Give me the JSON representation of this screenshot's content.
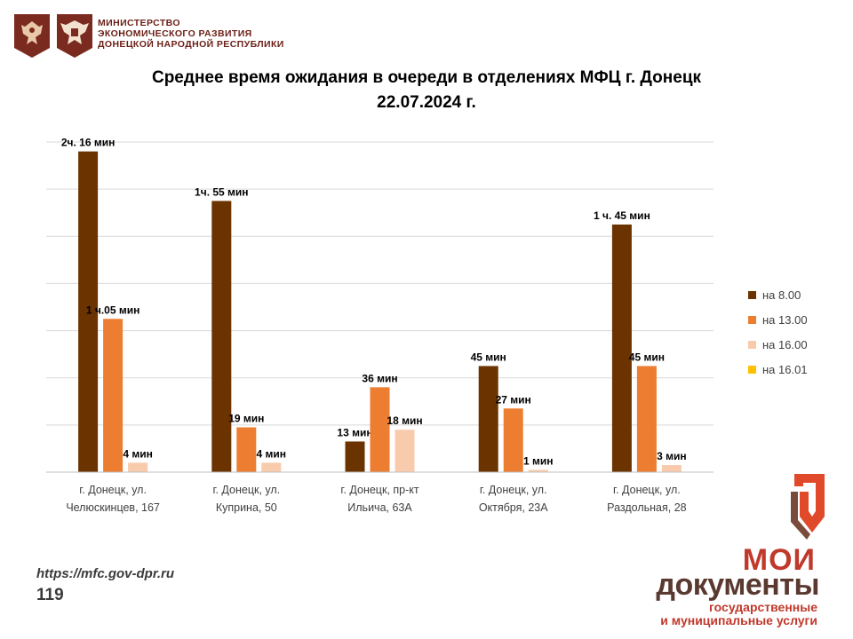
{
  "header": {
    "ministry_lines": [
      "МИНИСТЕРСТВО",
      "ЭКОНОМИЧЕСКОГО РАЗВИТИЯ",
      "ДОНЕЦКОЙ НАРОДНОЙ РЕСПУБЛИКИ"
    ],
    "emblems": [
      "coat-of-arms-icon",
      "eagle-emblem-icon"
    ]
  },
  "colors": {
    "series_0": "#6b3300",
    "series_1": "#ed7d31",
    "series_2": "#f8cbad",
    "series_3": "#ffc000",
    "brand_red": "#c0392b",
    "brand_brown": "#5a3a30",
    "grid": "#d9d9d9",
    "emblem_bg": "#7a2a1e"
  },
  "chart_data": {
    "type": "bar",
    "title": "Среднее время ожидания в очереди в отделениях МФЦ г. Донецк",
    "subtitle": "22.07.2024 г.",
    "categories": [
      [
        "г. Донецк, ул.",
        "Челюскинцев, 167"
      ],
      [
        "г. Донецк, ул.",
        "Куприна, 50"
      ],
      [
        "г. Донецк, пр-кт",
        "Ильича, 63А"
      ],
      [
        "г. Донецк, ул.",
        "Октября, 23А"
      ],
      [
        "г. Донецк, ул.",
        "Раздольная, 28"
      ]
    ],
    "series": [
      {
        "name": "на 8.00",
        "values": [
          136,
          115,
          13,
          45,
          105
        ],
        "labels": [
          "2ч. 16 мин",
          "1ч. 55 мин",
          "13 мин",
          "45 мин",
          "1 ч. 45 мин"
        ]
      },
      {
        "name": "на 13.00",
        "values": [
          65,
          19,
          36,
          27,
          45
        ],
        "labels": [
          "1 ч.05 мин",
          "19 мин",
          "36 мин",
          "27 мин",
          "45 мин"
        ]
      },
      {
        "name": "на 16.00",
        "values": [
          4,
          4,
          18,
          1,
          3
        ],
        "labels": [
          "4 мин",
          "4 мин",
          "18 мин",
          "1 мин",
          "3 мин"
        ]
      },
      {
        "name": "на 16.01",
        "values": [
          null,
          null,
          null,
          null,
          null
        ],
        "labels": [
          "",
          "",
          "",
          "",
          ""
        ]
      }
    ],
    "y_unit": "min",
    "ylim": [
      0,
      140
    ],
    "grid": true,
    "legend_position": "right"
  },
  "footer": {
    "url": "https://mfc.gov-dpr.ru",
    "page_number": "119"
  },
  "brand": {
    "name_top": "МОИ",
    "name_bottom": "документы",
    "subtitle_lines": [
      "государственные",
      "и муниципальные услуги"
    ],
    "logo_icon": "my-documents-logo-icon"
  }
}
